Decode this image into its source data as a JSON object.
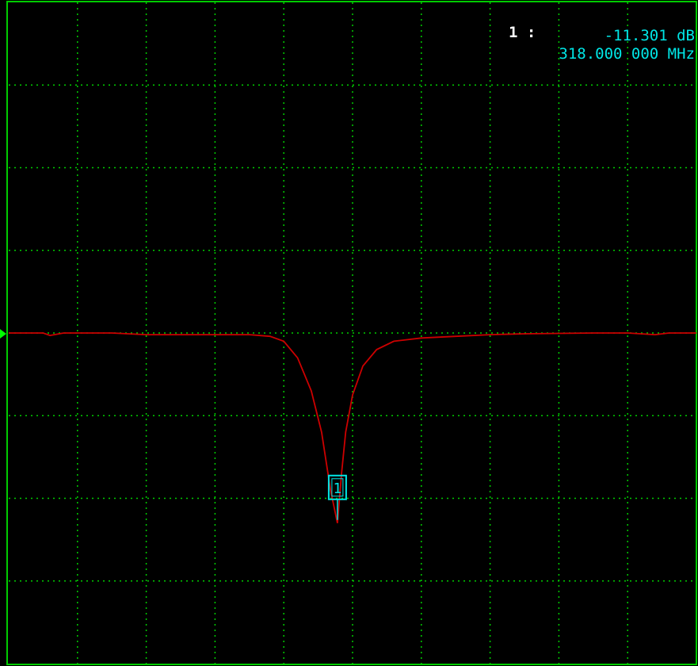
{
  "colors": {
    "background": "#000000",
    "frame": "#00cc00",
    "grid": "#00cc00",
    "trace": "#cc0000",
    "marker": "#00e6e6",
    "marker_index": "#ffffff",
    "reference_arrow": "#00ff00"
  },
  "marker_readout": {
    "index_label": "1 :",
    "value": "-11.301 dB",
    "frequency": "318.000 000 MHz"
  },
  "chart_data": {
    "type": "line",
    "grid": true,
    "grid_divisions": {
      "x": 10,
      "y": 8
    },
    "x_unit": "MHz",
    "y_unit": "dB",
    "xlim": [
      0,
      10
    ],
    "ylim": [
      -8,
      0
    ],
    "reference_level_division": -4,
    "series": [
      {
        "points": [
          [
            0.0,
            -4.0
          ],
          [
            0.5,
            -4.0
          ],
          [
            0.6,
            -4.03
          ],
          [
            0.8,
            -4.0
          ],
          [
            1.5,
            -4.0
          ],
          [
            2.0,
            -4.02
          ],
          [
            2.5,
            -4.02
          ],
          [
            3.0,
            -4.02
          ],
          [
            3.5,
            -4.02
          ],
          [
            3.8,
            -4.04
          ],
          [
            4.0,
            -4.1
          ],
          [
            4.2,
            -4.3
          ],
          [
            4.4,
            -4.7
          ],
          [
            4.55,
            -5.2
          ],
          [
            4.68,
            -5.9
          ],
          [
            4.78,
            -6.3
          ],
          [
            4.84,
            -5.7
          ],
          [
            4.9,
            -5.2
          ],
          [
            5.0,
            -4.75
          ],
          [
            5.15,
            -4.4
          ],
          [
            5.35,
            -4.2
          ],
          [
            5.6,
            -4.1
          ],
          [
            6.0,
            -4.06
          ],
          [
            6.5,
            -4.04
          ],
          [
            7.0,
            -4.02
          ],
          [
            7.5,
            -4.01
          ],
          [
            8.5,
            -4.0
          ],
          [
            9.0,
            -4.0
          ],
          [
            9.4,
            -4.02
          ],
          [
            9.6,
            -4.0
          ],
          [
            10.0,
            -4.0
          ]
        ]
      }
    ],
    "markers": [
      {
        "id": "1",
        "x": 4.78,
        "y": -6.3
      }
    ]
  }
}
